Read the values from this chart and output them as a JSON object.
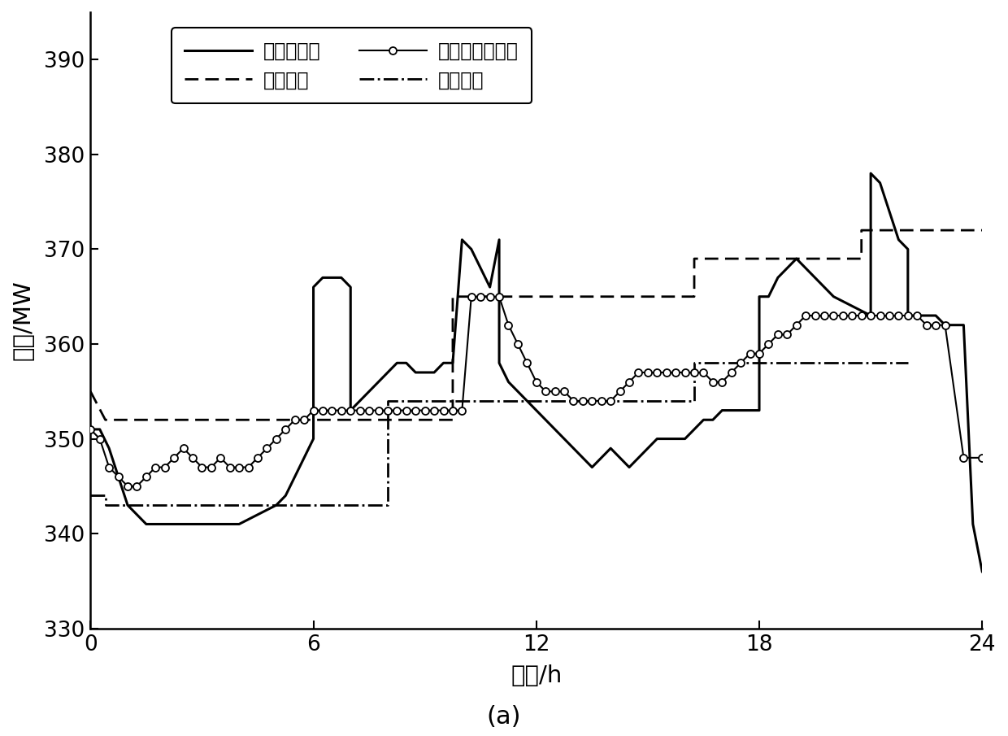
{
  "title_bottom": "(a)",
  "xlabel": "时间/h",
  "ylabel": "功率/MW",
  "xlim": [
    0,
    24
  ],
  "ylim": [
    330,
    395
  ],
  "yticks": [
    330,
    340,
    350,
    360,
    370,
    380,
    390
  ],
  "xticks": [
    0,
    6,
    12,
    18,
    24
  ],
  "legend_labels": [
    "实测净负荷",
    "双时间调峰结果",
    "区间上限",
    "区间下限"
  ],
  "net_load_x": [
    0,
    0.25,
    0.5,
    0.75,
    1.0,
    1.25,
    1.5,
    1.75,
    2.0,
    2.25,
    2.5,
    2.75,
    3.0,
    3.5,
    4.0,
    4.5,
    5.0,
    5.25,
    5.5,
    5.75,
    6.0,
    6.0,
    6.25,
    6.5,
    6.75,
    7.0,
    7.0,
    7.25,
    7.5,
    7.75,
    8.0,
    8.25,
    8.5,
    8.75,
    9.0,
    9.25,
    9.5,
    9.75,
    10.0,
    10.25,
    10.5,
    10.75,
    11.0,
    11.0,
    11.25,
    11.5,
    11.75,
    12.0,
    12.25,
    12.5,
    12.75,
    13.0,
    13.25,
    13.5,
    13.75,
    14.0,
    14.25,
    14.5,
    14.75,
    15.0,
    15.25,
    15.5,
    15.75,
    16.0,
    16.25,
    16.5,
    16.75,
    17.0,
    17.25,
    17.5,
    17.75,
    18.0,
    18.0,
    18.25,
    18.5,
    18.75,
    19.0,
    19.25,
    19.5,
    19.75,
    20.0,
    20.5,
    21.0,
    21.0,
    21.25,
    21.5,
    21.75,
    22.0,
    22.0,
    22.25,
    22.5,
    22.75,
    23.0,
    23.25,
    23.5,
    23.75,
    24.0
  ],
  "net_load_y": [
    351,
    351,
    349,
    346,
    343,
    342,
    341,
    341,
    341,
    341,
    341,
    341,
    341,
    341,
    341,
    342,
    343,
    344,
    346,
    348,
    350,
    366,
    367,
    367,
    367,
    366,
    353,
    354,
    355,
    356,
    357,
    358,
    358,
    357,
    357,
    357,
    358,
    358,
    371,
    370,
    368,
    366,
    371,
    358,
    356,
    355,
    354,
    353,
    352,
    351,
    350,
    349,
    348,
    347,
    348,
    349,
    348,
    347,
    348,
    349,
    350,
    350,
    350,
    350,
    351,
    352,
    352,
    353,
    353,
    353,
    353,
    353,
    365,
    365,
    367,
    368,
    369,
    368,
    367,
    366,
    365,
    364,
    363,
    378,
    377,
    374,
    371,
    370,
    363,
    363,
    363,
    363,
    362,
    362,
    362,
    341,
    336
  ],
  "peak_result_x": [
    0,
    0.25,
    0.5,
    0.75,
    1.0,
    1.25,
    1.5,
    1.75,
    2.0,
    2.25,
    2.5,
    2.75,
    3.0,
    3.25,
    3.5,
    3.75,
    4.0,
    4.25,
    4.5,
    4.75,
    5.0,
    5.25,
    5.5,
    5.75,
    6.0,
    6.25,
    6.5,
    6.75,
    7.0,
    7.25,
    7.5,
    7.75,
    8.0,
    8.25,
    8.5,
    8.75,
    9.0,
    9.25,
    9.5,
    9.75,
    10.0,
    10.25,
    10.5,
    10.75,
    11.0,
    11.25,
    11.5,
    11.75,
    12.0,
    12.25,
    12.5,
    12.75,
    13.0,
    13.25,
    13.5,
    13.75,
    14.0,
    14.25,
    14.5,
    14.75,
    15.0,
    15.25,
    15.5,
    15.75,
    16.0,
    16.25,
    16.5,
    16.75,
    17.0,
    17.25,
    17.5,
    17.75,
    18.0,
    18.25,
    18.5,
    18.75,
    19.0,
    19.25,
    19.5,
    19.75,
    20.0,
    20.25,
    20.5,
    20.75,
    21.0,
    21.25,
    21.5,
    21.75,
    22.0,
    22.25,
    22.5,
    22.75,
    23.0,
    23.5,
    24.0
  ],
  "peak_result_y": [
    351,
    350,
    347,
    346,
    345,
    345,
    346,
    347,
    347,
    348,
    349,
    348,
    347,
    347,
    348,
    347,
    347,
    347,
    348,
    349,
    350,
    351,
    352,
    352,
    353,
    353,
    353,
    353,
    353,
    353,
    353,
    353,
    353,
    353,
    353,
    353,
    353,
    353,
    353,
    353,
    353,
    365,
    365,
    365,
    365,
    362,
    360,
    358,
    356,
    355,
    355,
    355,
    354,
    354,
    354,
    354,
    354,
    355,
    356,
    357,
    357,
    357,
    357,
    357,
    357,
    357,
    357,
    356,
    356,
    357,
    358,
    359,
    359,
    360,
    361,
    361,
    362,
    363,
    363,
    363,
    363,
    363,
    363,
    363,
    363,
    363,
    363,
    363,
    363,
    363,
    362,
    362,
    362,
    348,
    348
  ],
  "upper_x": [
    0.0,
    0.4,
    0.4,
    9.75,
    9.75,
    16.25,
    16.25,
    20.75,
    20.75,
    22.5,
    22.5,
    24.0
  ],
  "upper_y": [
    355,
    352,
    352,
    352,
    365,
    365,
    369,
    369,
    372,
    372,
    372,
    372
  ],
  "lower_x": [
    0.0,
    0.4,
    0.4,
    8.0,
    8.0,
    16.25,
    16.25,
    22.0,
    22.0
  ],
  "lower_y": [
    344,
    344,
    343,
    343,
    354,
    354,
    358,
    358,
    358
  ],
  "background_color": "#ffffff",
  "line_color": "#000000"
}
